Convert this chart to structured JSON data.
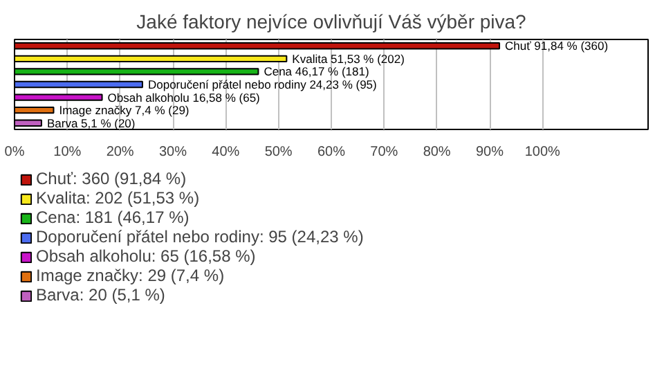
{
  "chart_data": {
    "type": "bar",
    "orientation": "horizontal",
    "stacked": true,
    "title": "Jaké faktory nejvíce ovlivňují Váš výběr piva?",
    "categories": [
      null,
      null,
      null,
      null,
      null,
      null,
      null
    ],
    "series": [
      {
        "name": "Chuť: 360 (91,84 %)",
        "color": "#c0140c",
        "values": [
          91.84,
          null,
          null,
          null,
          null,
          null,
          null
        ],
        "value_labels": [
          "Chuť 91,84 % (360)",
          null,
          null,
          null,
          null,
          null,
          null
        ]
      },
      {
        "name": "Kvalita: 202 (51,53 %)",
        "color": "#f8e81c",
        "values": [
          null,
          51.53,
          null,
          null,
          null,
          null,
          null
        ],
        "value_labels": [
          null,
          "Kvalita 51,53 % (202)",
          null,
          null,
          null,
          null,
          null
        ]
      },
      {
        "name": "Cena: 181 (46,17 %)",
        "color": "#18b418",
        "values": [
          null,
          null,
          46.17,
          null,
          null,
          null,
          null
        ],
        "value_labels": [
          null,
          null,
          "Cena 46,17 % (181)",
          null,
          null,
          null,
          null
        ]
      },
      {
        "name": "Doporučení přátel nebo rodiny: 95 (24,23 %)",
        "color": "#4c6cf0",
        "values": [
          null,
          null,
          null,
          24.23,
          null,
          null,
          null
        ],
        "value_labels": [
          null,
          null,
          null,
          "Doporučení přátel nebo rodiny 24,23 % (95)",
          null,
          null,
          null
        ]
      },
      {
        "name": "Obsah alkoholu: 65 (16,58 %)",
        "color": "#c814c8",
        "values": [
          null,
          null,
          null,
          null,
          16.58,
          null,
          null
        ],
        "value_labels": [
          null,
          null,
          null,
          null,
          "Obsah alkoholu 16,58 % (65)",
          null,
          null
        ]
      },
      {
        "name": "Image značky: 29 (7,4 %)",
        "color": "#e07010",
        "values": [
          null,
          null,
          null,
          null,
          null,
          7.4,
          null
        ],
        "value_labels": [
          null,
          null,
          null,
          null,
          null,
          "Image značky 7,4 % (29)",
          null
        ]
      },
      {
        "name": "Barva: 20 (5,1 %)",
        "color": "#c060c0",
        "values": [
          null,
          null,
          null,
          null,
          null,
          null,
          5.1
        ],
        "value_labels": [
          null,
          null,
          null,
          null,
          null,
          null,
          "Barva 5,1 % (20)"
        ]
      }
    ],
    "xlim": [
      0,
      120
    ],
    "xticks": [
      {
        "value": 0,
        "label": "0%"
      },
      {
        "value": 10,
        "label": "10%"
      },
      {
        "value": 20,
        "label": "20%"
      },
      {
        "value": 30,
        "label": "30%"
      },
      {
        "value": 40,
        "label": "40%"
      },
      {
        "value": 50,
        "label": "50%"
      },
      {
        "value": 60,
        "label": "60%"
      },
      {
        "value": 70,
        "label": "70%"
      },
      {
        "value": 80,
        "label": "80%"
      },
      {
        "value": 90,
        "label": "90%"
      },
      {
        "value": 100,
        "label": "100%"
      }
    ],
    "grid": "x",
    "legend": "bottom"
  }
}
